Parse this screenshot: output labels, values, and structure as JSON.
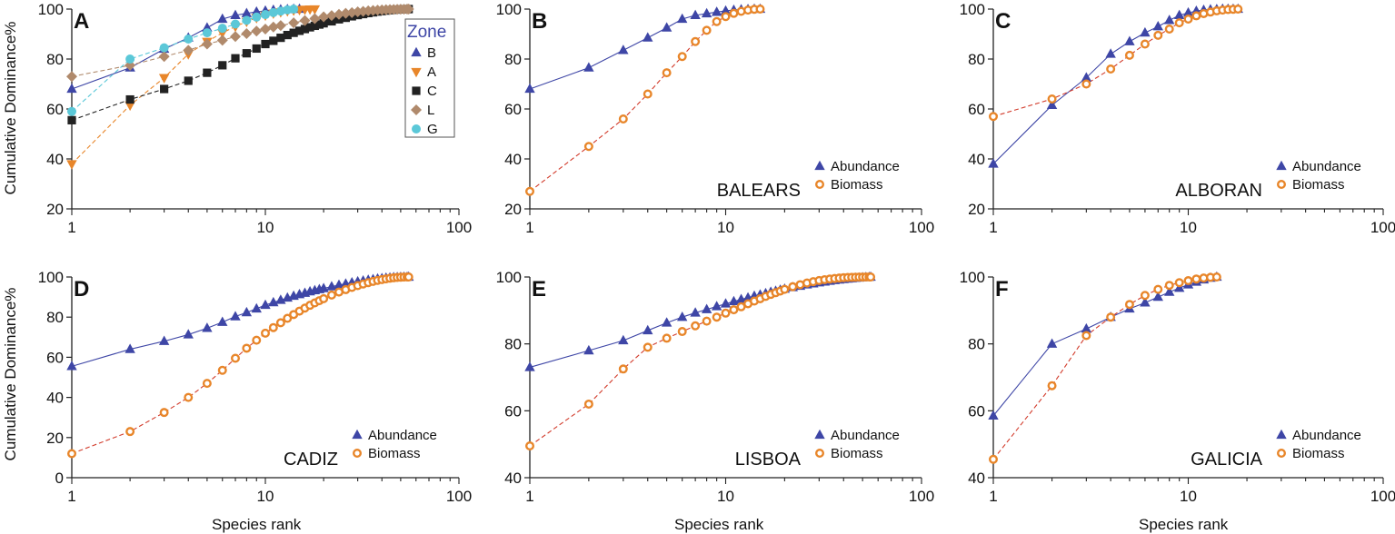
{
  "figure": {
    "y_axis_label": "Cumulative Dominance%",
    "x_axis_label": "Species rank",
    "x_ticks": [
      "1",
      "10",
      "100"
    ]
  },
  "legend_labels": {
    "abundance": "Abundance",
    "biomass": "Biomass"
  },
  "colors": {
    "abundance": "#3e46a6",
    "biomass": "#e8862a",
    "C": "#222222",
    "L": "#b08a6c",
    "G": "#5bc8d8"
  },
  "chart_data": [
    {
      "id": "A",
      "panel_letter": "A",
      "type": "line",
      "xscale": "log",
      "xlim": [
        1,
        100
      ],
      "ylim": [
        20,
        100
      ],
      "y_ticks": [
        20,
        40,
        60,
        80,
        100
      ],
      "legend": {
        "title": "Zone",
        "position": "top-right"
      },
      "series": [
        {
          "name": "B",
          "marker": "triangle-up",
          "color": "#3e46a6",
          "line": "solid",
          "x": [
            1,
            2,
            3,
            4,
            5,
            6,
            7,
            8,
            9,
            10,
            11,
            12,
            13,
            14,
            15
          ],
          "y": [
            68,
            76.5,
            84,
            88.5,
            92.5,
            96,
            97.5,
            98.3,
            98.9,
            99.3,
            99.6,
            99.8,
            99.9,
            100,
            100
          ]
        },
        {
          "name": "A",
          "marker": "triangle-down",
          "color": "#e8862a",
          "line": "dashed",
          "x": [
            1,
            2,
            3,
            4,
            5,
            6,
            7,
            8,
            9,
            10,
            11,
            12,
            13,
            14,
            15,
            16,
            17,
            18
          ],
          "y": [
            38,
            61.5,
            72.5,
            82,
            87,
            90.5,
            93,
            95,
            96.5,
            97.5,
            98.3,
            98.8,
            99.2,
            99.5,
            99.7,
            99.85,
            99.95,
            100
          ]
        },
        {
          "name": "C",
          "marker": "square",
          "color": "#222222",
          "line": "dashed",
          "x": [
            1,
            2,
            3,
            4,
            5,
            6,
            7,
            8,
            9,
            10,
            11,
            12,
            13,
            14,
            15,
            16,
            17,
            18,
            19,
            20,
            22,
            24,
            26,
            28,
            30,
            32,
            34,
            36,
            38,
            40,
            42,
            44,
            46,
            48,
            50,
            52,
            54,
            55
          ],
          "y": [
            55.5,
            63.8,
            68,
            71.3,
            74.5,
            77.5,
            80.3,
            82.3,
            84.2,
            86,
            87.3,
            88.5,
            89.6,
            90.5,
            91.3,
            92,
            92.7,
            93.3,
            93.8,
            94.3,
            95.1,
            95.9,
            96.5,
            97.1,
            97.6,
            98,
            98.4,
            98.7,
            99,
            99.2,
            99.4,
            99.55,
            99.7,
            99.8,
            99.88,
            99.94,
            99.98,
            100
          ]
        },
        {
          "name": "L",
          "marker": "diamond",
          "color": "#b08a6c",
          "line": "dashed",
          "x": [
            1,
            2,
            3,
            4,
            5,
            6,
            7,
            8,
            9,
            10,
            11,
            12,
            14,
            16,
            18,
            20,
            22,
            24,
            26,
            28,
            30,
            32,
            34,
            36,
            38,
            40,
            42,
            44,
            46,
            48,
            50,
            52,
            54,
            55
          ],
          "y": [
            73,
            77.5,
            81,
            83.5,
            86,
            87.5,
            89,
            90.2,
            91.2,
            92,
            92.8,
            93.4,
            94.5,
            95.4,
            96.2,
            96.9,
            97.4,
            97.9,
            98.3,
            98.6,
            98.9,
            99.1,
            99.3,
            99.45,
            99.58,
            99.68,
            99.76,
            99.83,
            99.88,
            99.92,
            99.95,
            99.97,
            99.99,
            100
          ]
        },
        {
          "name": "G",
          "marker": "circle",
          "color": "#5bc8d8",
          "line": "dashed",
          "x": [
            1,
            2,
            3,
            4,
            5,
            6,
            7,
            8,
            9,
            10,
            11,
            12,
            13,
            14
          ],
          "y": [
            59,
            80,
            84.5,
            88,
            90.5,
            92.3,
            94,
            95.5,
            96.8,
            97.8,
            98.6,
            99.2,
            99.7,
            100
          ]
        }
      ]
    },
    {
      "id": "B",
      "panel_letter": "B",
      "type": "line",
      "xscale": "log",
      "site": "BALEARS",
      "xlim": [
        1,
        100
      ],
      "ylim": [
        20,
        100
      ],
      "y_ticks": [
        20,
        40,
        60,
        80,
        100
      ],
      "legend": {
        "position": "bottom-right"
      },
      "series": [
        {
          "name": "Abundance",
          "x": [
            1,
            2,
            3,
            4,
            5,
            6,
            7,
            8,
            9,
            10,
            11,
            12,
            13,
            14,
            15
          ],
          "y": [
            68,
            76.5,
            83.5,
            88.5,
            92.5,
            96,
            97.5,
            98.2,
            98.8,
            99.3,
            99.6,
            99.8,
            99.9,
            100,
            100
          ]
        },
        {
          "name": "Biomass",
          "x": [
            1,
            2,
            3,
            4,
            5,
            6,
            7,
            8,
            9,
            10,
            11,
            12,
            13,
            14,
            15
          ],
          "y": [
            27,
            45,
            56,
            66,
            74.5,
            81,
            87,
            91.5,
            95,
            97,
            98.3,
            99.1,
            99.6,
            99.9,
            100
          ]
        }
      ]
    },
    {
      "id": "C",
      "panel_letter": "C",
      "type": "line",
      "xscale": "log",
      "site": "ALBORAN",
      "xlim": [
        1,
        100
      ],
      "ylim": [
        20,
        100
      ],
      "y_ticks": [
        20,
        40,
        60,
        80,
        100
      ],
      "legend": {
        "position": "bottom-right"
      },
      "series": [
        {
          "name": "Abundance",
          "x": [
            1,
            2,
            3,
            4,
            5,
            6,
            7,
            8,
            9,
            10,
            11,
            12,
            13,
            14,
            15,
            16,
            17,
            18
          ],
          "y": [
            38,
            61.5,
            72.5,
            82,
            87,
            90.5,
            93,
            95.5,
            97.5,
            98.5,
            99.2,
            99.6,
            99.8,
            99.9,
            100,
            100,
            100,
            100
          ]
        },
        {
          "name": "Biomass",
          "x": [
            1,
            2,
            3,
            4,
            5,
            6,
            7,
            8,
            9,
            10,
            11,
            12,
            13,
            14,
            15,
            16,
            17,
            18
          ],
          "y": [
            57,
            64,
            70,
            76,
            81.5,
            86,
            89.5,
            92,
            94.5,
            96,
            97.3,
            98.2,
            98.8,
            99.3,
            99.6,
            99.8,
            99.9,
            100
          ]
        }
      ]
    },
    {
      "id": "D",
      "panel_letter": "D",
      "type": "line",
      "xscale": "log",
      "site": "CADIZ",
      "xlim": [
        1,
        100
      ],
      "ylim": [
        0,
        100
      ],
      "y_ticks": [
        0,
        20,
        40,
        60,
        80,
        100
      ],
      "legend": {
        "position": "bottom-right"
      },
      "series": [
        {
          "name": "Abundance",
          "x": [
            1,
            2,
            3,
            4,
            5,
            6,
            7,
            8,
            9,
            10,
            11,
            12,
            13,
            14,
            15,
            16,
            17,
            18,
            19,
            20,
            22,
            24,
            26,
            28,
            30,
            32,
            34,
            36,
            38,
            40,
            42,
            44,
            46,
            48,
            50,
            52,
            54,
            55
          ],
          "y": [
            55.5,
            64,
            68,
            71.3,
            74.5,
            77.5,
            80.3,
            82.3,
            84.2,
            86,
            87.3,
            88.5,
            89.6,
            90.5,
            91.3,
            92,
            92.7,
            93.3,
            93.8,
            94.3,
            95.2,
            96,
            96.6,
            97.2,
            97.7,
            98.1,
            98.5,
            98.8,
            99.1,
            99.3,
            99.5,
            99.65,
            99.78,
            99.87,
            99.93,
            99.97,
            99.99,
            100
          ]
        },
        {
          "name": "Biomass",
          "x": [
            1,
            2,
            3,
            4,
            5,
            6,
            7,
            8,
            9,
            10,
            11,
            12,
            13,
            14,
            15,
            16,
            17,
            18,
            19,
            20,
            22,
            24,
            26,
            28,
            30,
            32,
            34,
            36,
            38,
            40,
            42,
            44,
            46,
            48,
            50,
            52,
            54,
            55
          ],
          "y": [
            12,
            23,
            32.5,
            40,
            47,
            53.5,
            59.5,
            64.5,
            68.5,
            72,
            74.8,
            77.2,
            79.4,
            81.3,
            83,
            84.5,
            85.9,
            87.1,
            88.2,
            89.2,
            91,
            92.5,
            93.7,
            94.8,
            95.7,
            96.5,
            97.2,
            97.8,
            98.3,
            98.7,
            99.05,
            99.35,
            99.58,
            99.75,
            99.87,
            99.94,
            99.98,
            100
          ]
        }
      ]
    },
    {
      "id": "E",
      "panel_letter": "E",
      "type": "line",
      "xscale": "log",
      "site": "LISBOA",
      "xlim": [
        1,
        100
      ],
      "ylim": [
        40,
        100
      ],
      "y_ticks": [
        40,
        60,
        80,
        100
      ],
      "legend": {
        "position": "bottom-right"
      },
      "series": [
        {
          "name": "Abundance",
          "x": [
            1,
            2,
            3,
            4,
            5,
            6,
            7,
            8,
            9,
            10,
            11,
            12,
            13,
            14,
            15,
            16,
            17,
            18,
            19,
            20,
            22,
            24,
            26,
            28,
            30,
            32,
            34,
            36,
            38,
            40,
            42,
            44,
            46,
            48,
            50,
            52,
            54,
            55
          ],
          "y": [
            73,
            78,
            81,
            84,
            86.3,
            88,
            89.3,
            90.3,
            91.2,
            92,
            92.7,
            93.3,
            93.8,
            94.3,
            94.7,
            95.1,
            95.5,
            95.8,
            96.1,
            96.4,
            96.9,
            97.3,
            97.7,
            98,
            98.3,
            98.55,
            98.78,
            98.98,
            99.15,
            99.3,
            99.43,
            99.55,
            99.66,
            99.75,
            99.83,
            99.9,
            99.96,
            100
          ]
        },
        {
          "name": "Biomass",
          "x": [
            1,
            2,
            3,
            4,
            5,
            6,
            7,
            8,
            9,
            10,
            11,
            12,
            13,
            14,
            15,
            16,
            17,
            18,
            19,
            20,
            22,
            24,
            26,
            28,
            30,
            32,
            34,
            36,
            38,
            40,
            42,
            44,
            46,
            48,
            50,
            52,
            54,
            55
          ],
          "y": [
            49.5,
            62,
            72.5,
            79,
            81.7,
            83.7,
            85.4,
            86.8,
            88,
            89.2,
            90.2,
            91.1,
            92,
            92.8,
            93.5,
            94.2,
            94.8,
            95.3,
            95.8,
            96.3,
            97.1,
            97.7,
            98.2,
            98.6,
            98.95,
            99.2,
            99.4,
            99.55,
            99.68,
            99.78,
            99.85,
            99.9,
            99.94,
            99.96,
            99.98,
            99.99,
            100,
            100
          ]
        }
      ]
    },
    {
      "id": "F",
      "panel_letter": "F",
      "type": "line",
      "xscale": "log",
      "site": "GALICIA",
      "xlim": [
        1,
        100
      ],
      "ylim": [
        40,
        100
      ],
      "y_ticks": [
        40,
        60,
        80,
        100
      ],
      "legend": {
        "position": "bottom-right"
      },
      "series": [
        {
          "name": "Abundance",
          "x": [
            1,
            2,
            3,
            4,
            5,
            6,
            7,
            8,
            9,
            10,
            11,
            12,
            13,
            14
          ],
          "y": [
            58.5,
            80,
            84.5,
            88,
            90.5,
            92.3,
            94,
            95.5,
            96.7,
            97.7,
            98.5,
            99.2,
            99.7,
            100
          ]
        },
        {
          "name": "Biomass",
          "x": [
            1,
            2,
            3,
            4,
            5,
            6,
            7,
            8,
            9,
            10,
            11,
            12,
            13,
            14
          ],
          "y": [
            45.5,
            67.5,
            82.5,
            88,
            91.8,
            94.5,
            96.3,
            97.5,
            98.3,
            98.9,
            99.4,
            99.7,
            99.9,
            100
          ]
        }
      ]
    }
  ]
}
